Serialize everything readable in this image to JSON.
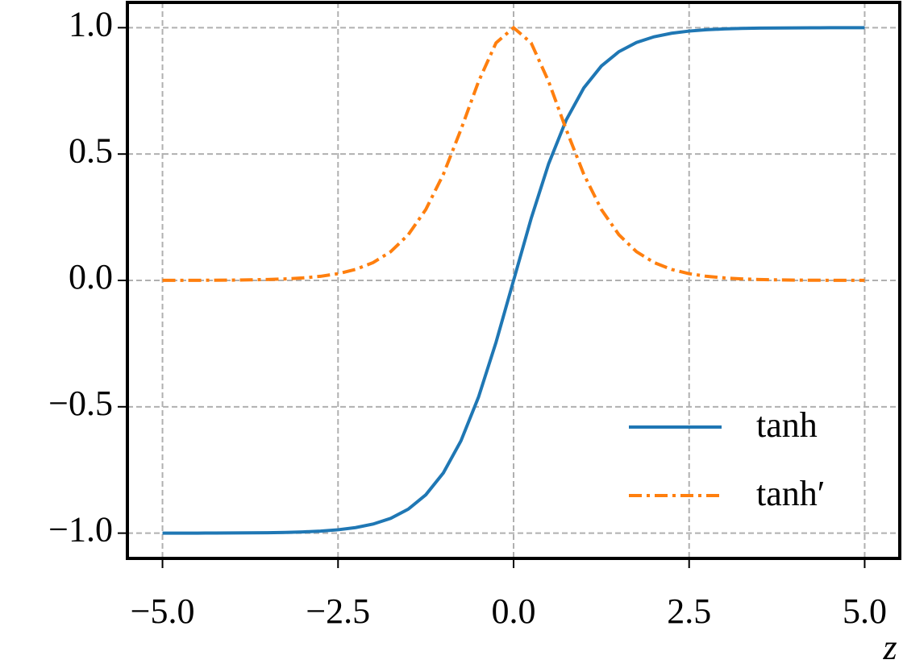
{
  "chart_data": {
    "type": "line",
    "x_label": "z",
    "x": [
      -5,
      -4.75,
      -4.5,
      -4.25,
      -4,
      -3.75,
      -3.5,
      -3.25,
      -3,
      -2.75,
      -2.5,
      -2.25,
      -2,
      -1.75,
      -1.5,
      -1.25,
      -1,
      -0.75,
      -0.5,
      -0.25,
      0,
      0.25,
      0.5,
      0.75,
      1,
      1.25,
      1.5,
      1.75,
      2,
      2.25,
      2.5,
      2.75,
      3,
      3.25,
      3.5,
      3.75,
      4,
      4.25,
      4.5,
      4.75,
      5
    ],
    "series": [
      {
        "name": "tanh",
        "color": "#1f77b4",
        "style": "solid",
        "values": [
          -0.9999,
          -0.9999,
          -0.9998,
          -0.9996,
          -0.9993,
          -0.9989,
          -0.9982,
          -0.997,
          -0.9951,
          -0.9919,
          -0.9866,
          -0.978,
          -0.964,
          -0.9414,
          -0.9051,
          -0.8483,
          -0.7616,
          -0.6351,
          -0.4621,
          -0.2449,
          0,
          0.2449,
          0.4621,
          0.6351,
          0.7616,
          0.8483,
          0.9051,
          0.9414,
          0.964,
          0.978,
          0.9866,
          0.9919,
          0.9951,
          0.997,
          0.9982,
          0.9989,
          0.9993,
          0.9996,
          0.9998,
          0.9999,
          0.9999
        ]
      },
      {
        "name": "tanh′",
        "color": "#ff7f0e",
        "style": "dashdot",
        "values": [
          0.0002,
          0.0003,
          0.0005,
          0.0008,
          0.0013,
          0.0022,
          0.0036,
          0.006,
          0.0099,
          0.0162,
          0.0266,
          0.0435,
          0.0707,
          0.1137,
          0.1807,
          0.2805,
          0.42,
          0.5966,
          0.7864,
          0.94,
          1,
          0.94,
          0.7864,
          0.5966,
          0.42,
          0.2805,
          0.1807,
          0.1137,
          0.0707,
          0.0435,
          0.0266,
          0.0162,
          0.0099,
          0.006,
          0.0036,
          0.0022,
          0.0013,
          0.0008,
          0.0005,
          0.0003,
          0.0002
        ]
      }
    ],
    "xlim": [
      -5.5,
      5.5
    ],
    "ylim": [
      -1.1,
      1.1
    ],
    "xticks": [
      {
        "value": -5,
        "label": "−5.0"
      },
      {
        "value": -2.5,
        "label": "−2.5"
      },
      {
        "value": 0,
        "label": "0.0"
      },
      2.5,
      {
        "value": 5,
        "label": "5.0"
      }
    ],
    "yticks": [
      {
        "value": -1,
        "label": "−1.0"
      },
      {
        "value": -0.5,
        "label": "−0.5"
      },
      {
        "value": 0,
        "label": "0.0"
      },
      0.5,
      {
        "value": 1,
        "label": "1.0"
      }
    ],
    "grid": true,
    "legend": "lower right"
  }
}
